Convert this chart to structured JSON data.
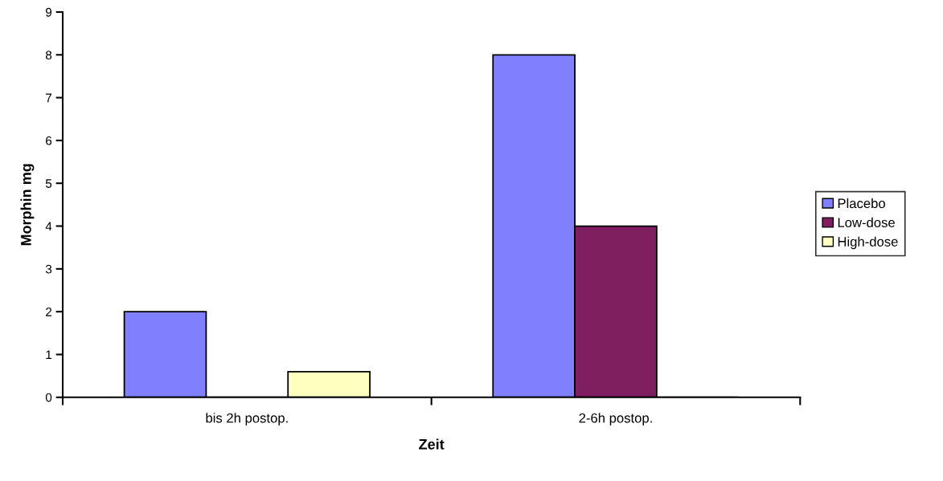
{
  "chart_data": {
    "type": "bar",
    "xlabel": "Zeit",
    "ylabel": "Morphin mg",
    "categories": [
      "bis 2h postop.",
      "2-6h postop."
    ],
    "series": [
      {
        "name": "Placebo",
        "color": "#8080ff",
        "values": [
          2,
          8
        ]
      },
      {
        "name": "Low-dose",
        "color": "#7f1f5f",
        "values": [
          0,
          4
        ]
      },
      {
        "name": "High-dose",
        "color": "#ffffc0",
        "values": [
          0.6,
          0
        ]
      }
    ],
    "ylim": [
      0,
      9
    ],
    "yticks": [
      0,
      1,
      2,
      3,
      4,
      5,
      6,
      7,
      8,
      9
    ],
    "grid": false,
    "legend": "right"
  }
}
